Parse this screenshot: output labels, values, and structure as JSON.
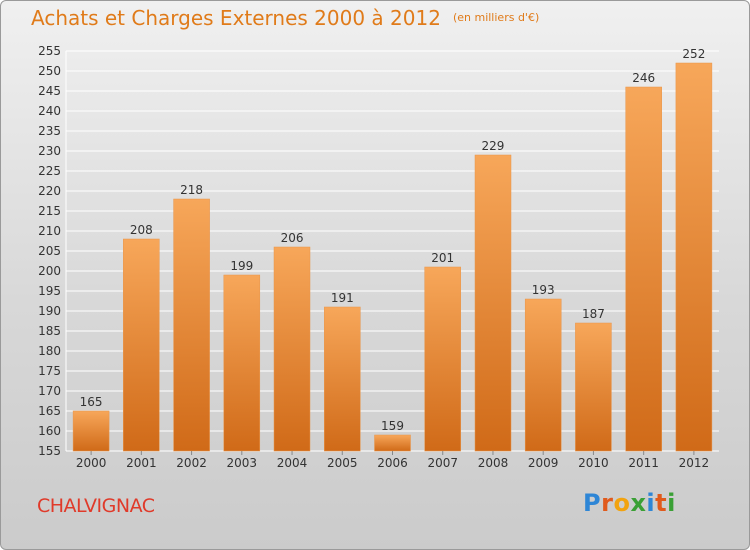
{
  "title": "Achats et Charges Externes 2000 à 2012",
  "unit": "(en milliers d'€)",
  "commune": "CHALVIGNAC",
  "logo": {
    "text": "Proxiti",
    "letters": [
      "P",
      "r",
      "o",
      "x",
      "i",
      "t",
      "i"
    ],
    "colors": [
      "#2e86d6",
      "#e05a1c",
      "#f2a30f",
      "#3aa035",
      "#2e86d6",
      "#e05a1c",
      "#3aa035"
    ]
  },
  "colors": {
    "bar_light": "#f7a75a",
    "bar_dark": "#d06a18",
    "grid": "#ffffff",
    "title": "#e07b1a"
  },
  "chart_data": {
    "type": "bar",
    "title": "Achats et Charges Externes 2000 à 2012",
    "categories": [
      "2000",
      "2001",
      "2002",
      "2003",
      "2004",
      "2005",
      "2006",
      "2007",
      "2008",
      "2009",
      "2010",
      "2011",
      "2012"
    ],
    "values": [
      165,
      208,
      218,
      199,
      206,
      191,
      159,
      201,
      229,
      193,
      187,
      246,
      252
    ],
    "ylim": [
      155,
      255
    ],
    "ytick_step": 5,
    "grid": true,
    "data_labels": true
  }
}
